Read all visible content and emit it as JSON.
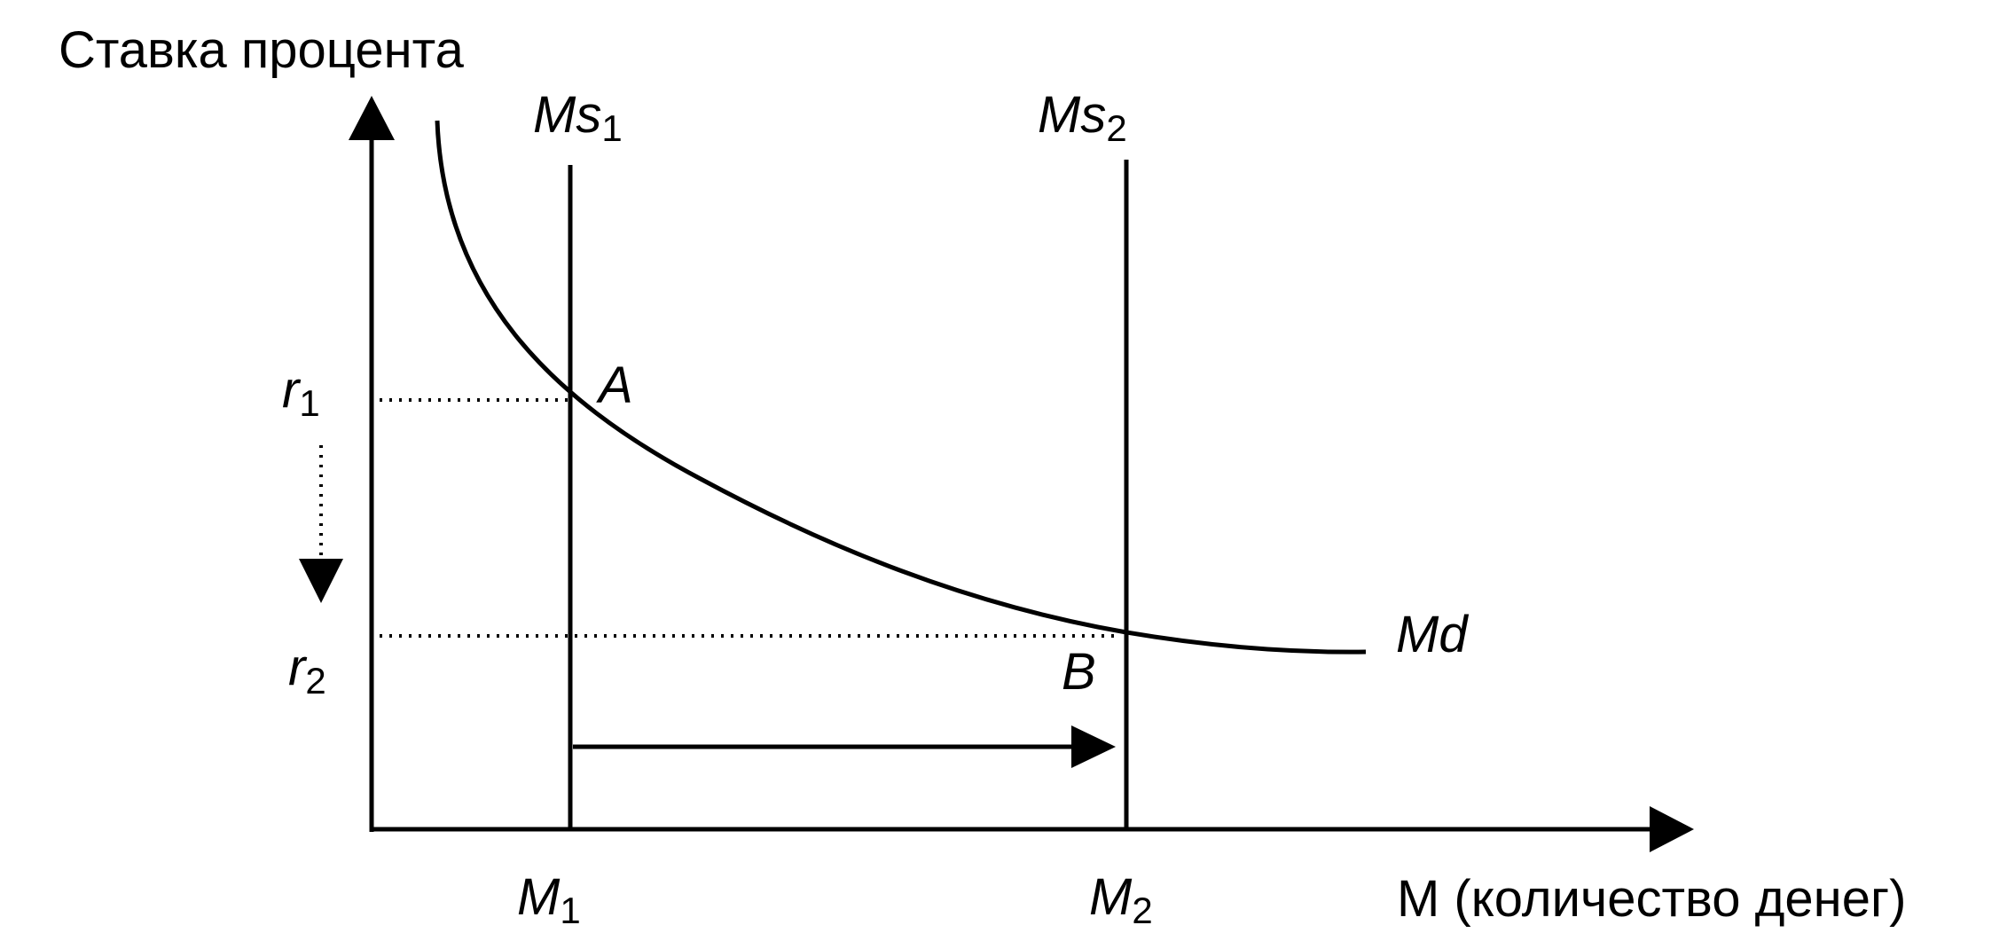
{
  "axes": {
    "y_title": "Ставка процента",
    "x_title": "M (количество денег)"
  },
  "curves": {
    "ms1": {
      "main": "Ms",
      "sub": "1"
    },
    "ms2": {
      "main": "Ms",
      "sub": "2"
    },
    "md": "Md"
  },
  "points": {
    "a": "A",
    "b": "B"
  },
  "ticks": {
    "r1": {
      "main": "r",
      "sub": "1"
    },
    "r2": {
      "main": "r",
      "sub": "2"
    },
    "m1": {
      "main": "M",
      "sub": "1"
    },
    "m2": {
      "main": "M",
      "sub": "2"
    }
  },
  "colors": {
    "ink": "#000000",
    "background": "#ffffff"
  }
}
